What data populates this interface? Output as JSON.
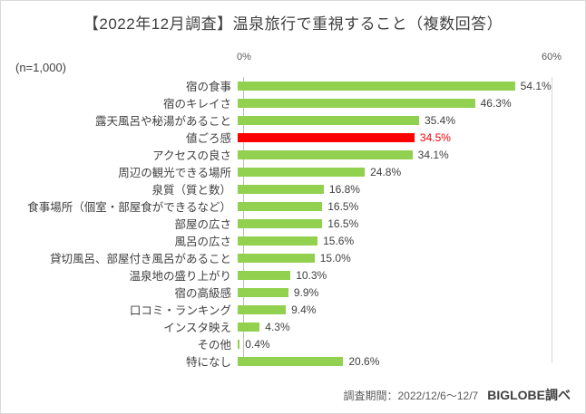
{
  "title": "【2022年12月調査】温泉旅行で重視すること（複数回答）",
  "n_label": "(n=1,000)",
  "axis": {
    "min_label": "0%",
    "max_label": "60%"
  },
  "chart_data": {
    "type": "bar",
    "orientation": "horizontal",
    "title": "【2022年12月調査】温泉旅行で重視すること（複数回答）",
    "sample_size": "(n=1,000)",
    "xlim": [
      0,
      60
    ],
    "x_tick_labels": [
      "0%",
      "60%"
    ],
    "grid": "single vertical gridline at 60%",
    "legend": "none",
    "categories": [
      "宿の食事",
      "宿のキレイさ",
      "露天風呂や秘湯があること",
      "値ごろ感",
      "アクセスの良さ",
      "周辺の観光できる場所",
      "泉質（質と数）",
      "食事場所（個室・部屋食ができるなど）",
      "部屋の広さ",
      "風呂の広さ",
      "貸切風呂、部屋付き風呂があること",
      "温泉地の盛り上がり",
      "宿の高級感",
      "口コミ・ランキング",
      "インスタ映え",
      "その他",
      "特になし"
    ],
    "values": [
      54.1,
      46.3,
      35.4,
      34.5,
      34.1,
      24.8,
      16.8,
      16.5,
      16.5,
      15.6,
      15.0,
      10.3,
      9.9,
      9.4,
      4.3,
      0.4,
      20.6
    ],
    "value_labels": [
      "54.1%",
      "46.3%",
      "35.4%",
      "34.5%",
      "34.1%",
      "24.8%",
      "16.8%",
      "16.5%",
      "16.5%",
      "15.6%",
      "15.0%",
      "10.3%",
      "9.9%",
      "9.4%",
      "4.3%",
      "0.4%",
      "20.6%"
    ],
    "bar_color": "#92d050",
    "highlight": {
      "index": 3,
      "bar_color": "#ff0000",
      "value_label_color": "#ff0000"
    }
  },
  "footer": {
    "period": "調査期間：2022/12/6～12/7",
    "source": "BIGLOBE調べ"
  },
  "colors": {
    "background": "#ffffff",
    "border": "#d9d9d9",
    "title_text": "#404040",
    "label_text": "#404040",
    "axis_text": "#595959",
    "axis_line": "#bfbfbf",
    "gridline": "#d9d9d9",
    "bar_green": "#92d050",
    "bar_red": "#ff0000"
  }
}
